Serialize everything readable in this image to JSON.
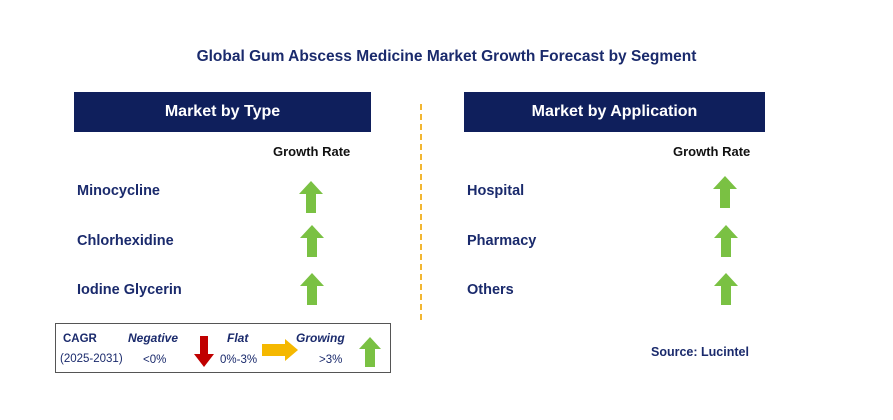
{
  "title": "Global Gum Abscess Medicine Market Growth Forecast by Segment",
  "left_panel": {
    "header": "Market by Type",
    "growth_rate_label": "Growth Rate",
    "items": [
      {
        "label": "Minocycline",
        "trend": "growing"
      },
      {
        "label": "Chlorhexidine",
        "trend": "growing"
      },
      {
        "label": "Iodine Glycerin",
        "trend": "growing"
      }
    ]
  },
  "right_panel": {
    "header": "Market by Application",
    "growth_rate_label": "Growth Rate",
    "items": [
      {
        "label": "Hospital",
        "trend": "growing"
      },
      {
        "label": "Pharmacy",
        "trend": "growing"
      },
      {
        "label": "Others",
        "trend": "growing"
      }
    ]
  },
  "legend": {
    "cagr_label": "CAGR",
    "period": "(2025-2031)",
    "negative_label": "Negative",
    "negative_range": "<0%",
    "flat_label": "Flat",
    "flat_range": "0%-3%",
    "growing_label": "Growing",
    "growing_range": ">3%"
  },
  "source": "Source: Lucintel",
  "colors": {
    "header_bg": "#0f1f5c",
    "text_navy": "#1a2a6c",
    "arrow_green": "#7ac143",
    "arrow_red": "#c00000",
    "arrow_yellow": "#f5b800",
    "divider": "#f2b632"
  }
}
